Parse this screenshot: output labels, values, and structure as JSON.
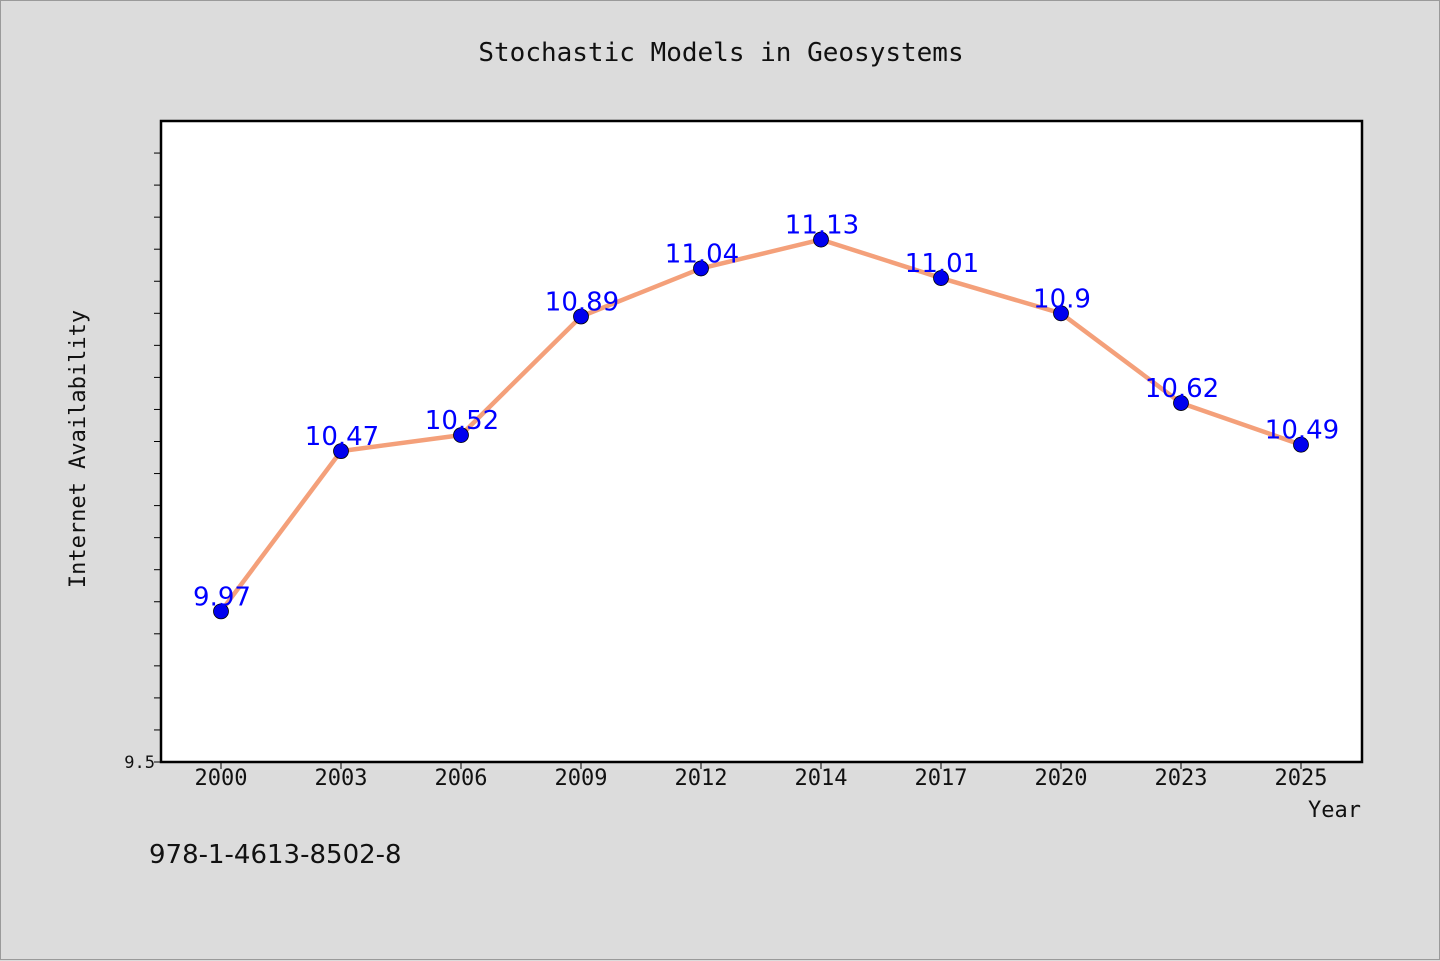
{
  "chart_data": {
    "type": "line",
    "title": "Stochastic Models in Geosystems",
    "xlabel": "Year",
    "ylabel": "Internet Availability",
    "categories": [
      "2000",
      "2003",
      "2006",
      "2009",
      "2012",
      "2014",
      "2017",
      "2020",
      "2023",
      "2025"
    ],
    "series": [
      {
        "values": [
          9.97,
          10.47,
          10.52,
          10.89,
          11.04,
          11.13,
          11.01,
          10.9,
          10.62,
          10.49
        ],
        "line_color": "#f4a07a",
        "marker_color": "#0000ee"
      }
    ],
    "ylim": [
      9.5,
      11.5
    ],
    "y_tick_labels": [
      {
        "value": 9.5,
        "label": "9.5"
      }
    ],
    "y_minor_step": 0.1,
    "data_labels": true,
    "data_label_color": "#0000ff",
    "grid": false,
    "legend": "none"
  },
  "footer": {
    "isbn": "978-1-4613-8502-8"
  }
}
